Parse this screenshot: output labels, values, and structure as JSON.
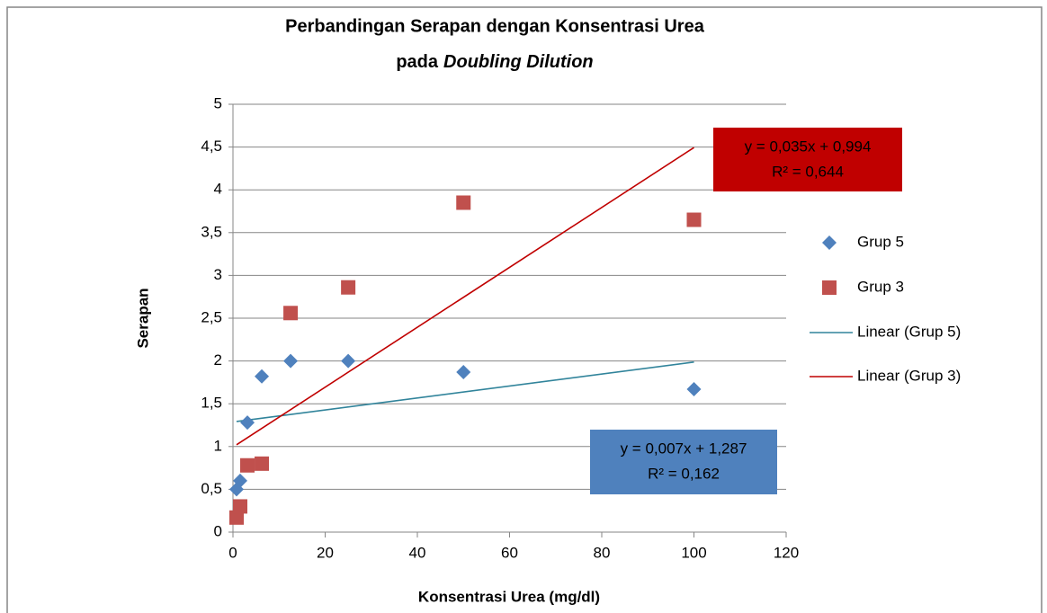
{
  "chart_data": {
    "type": "scatter",
    "title": "Perbandingan Serapan dengan Konsentrasi Urea",
    "subtitle": [
      "pada",
      "Doubling Dilution"
    ],
    "x_label": "Konsentrasi Urea (mg/dl)",
    "y_label": "Serapan",
    "xlim": [
      0,
      120
    ],
    "xticks": [
      0,
      20,
      40,
      60,
      80,
      100,
      120
    ],
    "ylim": [
      0,
      5
    ],
    "yticks": [
      0,
      {
        "value": 0.5,
        "label": "0,5"
      },
      1,
      {
        "value": 1.5,
        "label": "1,5"
      },
      2,
      {
        "value": 2.5,
        "label": "2,5"
      },
      3,
      {
        "value": 3.5,
        "label": "3,5"
      },
      4,
      {
        "value": 4.5,
        "label": "4,5"
      },
      5
    ],
    "grid": true,
    "legend": "right",
    "series": [
      {
        "name": "Grup 5",
        "color": "#4f81bd",
        "marker": "diamond",
        "x": [
          0.78125,
          1.5625,
          3.125,
          6.25,
          12.5,
          25,
          50,
          100
        ],
        "values": [
          0.5,
          0.6,
          1.28,
          1.82,
          2.0,
          2.0,
          1.87,
          1.67
        ]
      },
      {
        "name": "Grup 3",
        "color": "#c0504d",
        "marker": "square",
        "x": [
          0.78125,
          1.5625,
          3.125,
          6.25,
          12.5,
          25,
          50,
          100
        ],
        "values": [
          0.17,
          0.3,
          0.78,
          0.8,
          2.56,
          2.86,
          3.85,
          3.65
        ]
      }
    ],
    "trendlines": [
      {
        "name": "Linear (Grup 5)",
        "series": 0,
        "color": "#31849b",
        "slope": 0.007,
        "intercept": 1.287,
        "equation": "y = 0,007x + 1,287",
        "r2": "R² = 0,162",
        "box_color": "#4f81bd"
      },
      {
        "name": "Linear (Grup 3)",
        "series": 1,
        "color": "#c00000",
        "slope": 0.035,
        "intercept": 0.994,
        "equation": "y = 0,035x + 0,994",
        "r2": "R² = 0,644",
        "box_color": "#c00000"
      }
    ]
  }
}
